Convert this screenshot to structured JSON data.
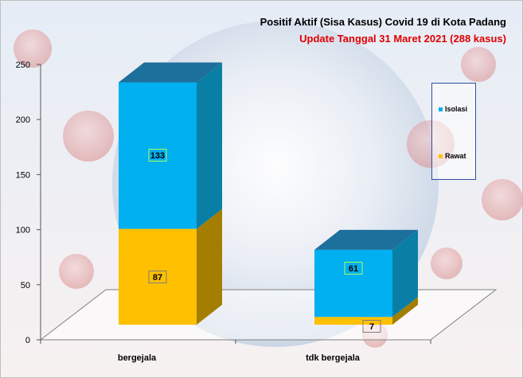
{
  "title": "Positif Aktif  (Sisa Kasus) Covid 19 di Kota Padang",
  "subtitle": "Update Tanggal 31 Maret 2021  (288 kasus)",
  "colors": {
    "subtitle": "#e00000",
    "isolasi": "#00b0f0",
    "isolasi_side": "#0a7fa6",
    "isolasi_top": "#1d6f9c",
    "rawat": "#ffc000",
    "rawat_side": "#a37e00",
    "rawat_top": "#8a6d00"
  },
  "chart_data": {
    "type": "bar",
    "stacked": true,
    "three_d": true,
    "categories": [
      "bergejala",
      "tdk bergejala"
    ],
    "series": [
      {
        "name": "Rawat",
        "values": [
          87,
          7
        ]
      },
      {
        "name": "Isolasi",
        "values": [
          133,
          61
        ]
      }
    ],
    "yticks": [
      "0",
      "50",
      "100",
      "150",
      "200",
      "250"
    ],
    "ylim": [
      0,
      250
    ],
    "legend": "right",
    "grid": false
  }
}
